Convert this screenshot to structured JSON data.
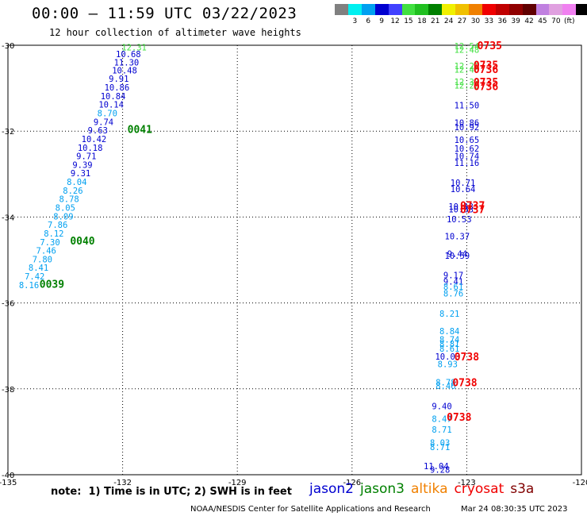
{
  "header": {
    "title": "00:00 – 11:59 UTC 03/22/2023",
    "subtitle": "12 hour collection of altimeter wave heights"
  },
  "color_scale": {
    "colors": [
      "#808080",
      "#00f0f0",
      "#00a0f0",
      "#0000d0",
      "#4040ff",
      "#40e040",
      "#20c020",
      "#008000",
      "#f0f000",
      "#f0c000",
      "#f08000",
      "#f00000",
      "#c00000",
      "#900000",
      "#600000",
      "#c080e0",
      "#e0a0e0",
      "#f080f0",
      "#000000"
    ],
    "labels": [
      "3",
      "6",
      "9",
      "12",
      "15",
      "18",
      "21",
      "24",
      "27",
      "30",
      "33",
      "36",
      "39",
      "42",
      "45",
      "70",
      "(ft)"
    ]
  },
  "chart_data": {
    "type": "scatter",
    "title": "00:00 – 11:59 UTC 03/22/2023",
    "subtitle": "12 hour collection of altimeter wave heights",
    "xlabel": "",
    "ylabel": "",
    "xlim": [
      -135,
      -120
    ],
    "ylim": [
      -40,
      -30
    ],
    "x_ticks": [
      "-135",
      "-132",
      "-129",
      "-126",
      "-123",
      "-120"
    ],
    "y_ticks": [
      "-30",
      "-32",
      "-34",
      "-36",
      "-38",
      "-40"
    ],
    "grid": true,
    "series": [
      {
        "name": "jason3",
        "color": "#008000",
        "points": [
          {
            "x": -131.7,
            "y": -30.05,
            "label": "12.31",
            "color": "#40e040"
          },
          {
            "x": -131.85,
            "y": -30.2,
            "label": "10.68",
            "color": "#0000d0"
          },
          {
            "x": -131.9,
            "y": -30.4,
            "label": "11.30",
            "color": "#0000d0"
          },
          {
            "x": -131.95,
            "y": -30.58,
            "label": "10.48",
            "color": "#0000d0"
          },
          {
            "x": -132.1,
            "y": -30.78,
            "label": "9.91",
            "color": "#0000d0"
          },
          {
            "x": -132.15,
            "y": -30.98,
            "label": "10.86",
            "color": "#0000d0"
          },
          {
            "x": -132.25,
            "y": -31.18,
            "label": "10.84",
            "color": "#0000d0"
          },
          {
            "x": -132.3,
            "y": -31.38,
            "label": "10.14",
            "color": "#0000d0"
          },
          {
            "x": -132.4,
            "y": -31.58,
            "label": "8.70",
            "color": "#00a0f0"
          },
          {
            "x": -132.5,
            "y": -31.78,
            "label": "9.74",
            "color": "#0000d0"
          },
          {
            "x": -132.65,
            "y": -31.98,
            "label": "9.63",
            "color": "#0000d0"
          },
          {
            "x": -132.75,
            "y": -32.18,
            "label": "10.42",
            "color": "#0000d0"
          },
          {
            "x": -132.85,
            "y": -32.38,
            "label": "10.18",
            "color": "#0000d0"
          },
          {
            "x": -132.95,
            "y": -32.58,
            "label": "9.71",
            "color": "#0000d0"
          },
          {
            "x": -133.05,
            "y": -32.78,
            "label": "9.39",
            "color": "#0000d0"
          },
          {
            "x": -133.1,
            "y": -32.98,
            "label": "9.31",
            "color": "#0000d0"
          },
          {
            "x": -133.2,
            "y": -33.18,
            "label": "8.04",
            "color": "#00a0f0"
          },
          {
            "x": -133.3,
            "y": -33.38,
            "label": "8.26",
            "color": "#00a0f0"
          },
          {
            "x": -133.4,
            "y": -33.58,
            "label": "8.78",
            "color": "#00a0f0"
          },
          {
            "x": -133.5,
            "y": -33.78,
            "label": "8.05",
            "color": "#00a0f0"
          },
          {
            "x": -133.55,
            "y": -33.98,
            "label": "8.09",
            "color": "#00a0f0"
          },
          {
            "x": -133.7,
            "y": -34.18,
            "label": "7.86",
            "color": "#00a0f0"
          },
          {
            "x": -133.8,
            "y": -34.38,
            "label": "8.12",
            "color": "#00a0f0"
          },
          {
            "x": -133.9,
            "y": -34.58,
            "label": "7.30",
            "color": "#00a0f0"
          },
          {
            "x": -134.0,
            "y": -34.78,
            "label": "7.46",
            "color": "#00a0f0"
          },
          {
            "x": -134.1,
            "y": -34.98,
            "label": "7.80",
            "color": "#00a0f0"
          },
          {
            "x": -134.2,
            "y": -35.18,
            "label": "8.41",
            "color": "#00a0f0"
          },
          {
            "x": -134.3,
            "y": -35.38,
            "label": "7.42",
            "color": "#00a0f0"
          },
          {
            "x": -134.45,
            "y": -35.58,
            "label": "8.16",
            "color": "#00a0f0"
          }
        ],
        "time_labels": [
          {
            "x": -131.55,
            "y": -31.95,
            "text": "0041"
          },
          {
            "x": -133.05,
            "y": -34.55,
            "text": "0040"
          },
          {
            "x": -133.85,
            "y": -35.55,
            "text": "0039"
          }
        ]
      },
      {
        "name": "jason2",
        "color": "#0000d0",
        "points": [
          {
            "x": -123.0,
            "y": -30.02,
            "label": "12.54",
            "color": "#40e040"
          },
          {
            "x": -123.0,
            "y": -30.1,
            "label": "12.48",
            "color": "#40e040"
          },
          {
            "x": -123.0,
            "y": -30.48,
            "label": "12.29",
            "color": "#40e040"
          },
          {
            "x": -123.0,
            "y": -30.56,
            "label": "12.46",
            "color": "#40e040"
          },
          {
            "x": -123.0,
            "y": -30.85,
            "label": "12.37",
            "color": "#40e040"
          },
          {
            "x": -123.0,
            "y": -30.93,
            "label": "12.20",
            "color": "#40e040"
          },
          {
            "x": -123.0,
            "y": -31.4,
            "label": "11.50",
            "color": "#0000d0"
          },
          {
            "x": -123.0,
            "y": -31.8,
            "label": "10.86",
            "color": "#0000d0"
          },
          {
            "x": -123.0,
            "y": -31.9,
            "label": "10.92",
            "color": "#0000d0"
          },
          {
            "x": -123.0,
            "y": -32.2,
            "label": "10.65",
            "color": "#0000d0"
          },
          {
            "x": -123.0,
            "y": -32.4,
            "label": "10.62",
            "color": "#0000d0"
          },
          {
            "x": -123.0,
            "y": -32.58,
            "label": "10.74",
            "color": "#0000d0"
          },
          {
            "x": -123.0,
            "y": -32.74,
            "label": "11.16",
            "color": "#0000d0"
          },
          {
            "x": -123.1,
            "y": -33.2,
            "label": "10.71",
            "color": "#0000d0"
          },
          {
            "x": -123.1,
            "y": -33.35,
            "label": "10.64",
            "color": "#0000d0"
          },
          {
            "x": -123.15,
            "y": -33.75,
            "label": "10.13",
            "color": "#0000d0"
          },
          {
            "x": -123.15,
            "y": -33.82,
            "label": "10.83",
            "color": "#0000d0"
          },
          {
            "x": -123.2,
            "y": -34.05,
            "label": "10.53",
            "color": "#0000d0"
          },
          {
            "x": -123.25,
            "y": -34.45,
            "label": "10.37",
            "color": "#0000d0"
          },
          {
            "x": -123.25,
            "y": -34.85,
            "label": "9.44",
            "color": "#0000d0"
          },
          {
            "x": -123.25,
            "y": -34.9,
            "label": "10.59",
            "color": "#0000d0"
          },
          {
            "x": -123.35,
            "y": -35.35,
            "label": "9.17",
            "color": "#0000d0"
          },
          {
            "x": -123.35,
            "y": -35.5,
            "label": "9.41",
            "color": "#0000d0"
          },
          {
            "x": -123.35,
            "y": -35.62,
            "label": "8.61",
            "color": "#00a0f0"
          },
          {
            "x": -123.35,
            "y": -35.78,
            "label": "8.76",
            "color": "#00a0f0"
          },
          {
            "x": -123.45,
            "y": -36.25,
            "label": "8.21",
            "color": "#00a0f0"
          },
          {
            "x": -123.45,
            "y": -36.65,
            "label": "8.84",
            "color": "#00a0f0"
          },
          {
            "x": -123.45,
            "y": -36.85,
            "label": "8.74",
            "color": "#00a0f0"
          },
          {
            "x": -123.45,
            "y": -36.95,
            "label": "8.81",
            "color": "#00a0f0"
          },
          {
            "x": -123.45,
            "y": -37.06,
            "label": "8.61",
            "color": "#00a0f0"
          },
          {
            "x": -123.5,
            "y": -37.25,
            "label": "10.03",
            "color": "#0000d0"
          },
          {
            "x": -123.5,
            "y": -37.42,
            "label": "8.93",
            "color": "#00a0f0"
          },
          {
            "x": -123.55,
            "y": -37.85,
            "label": "8.78",
            "color": "#00a0f0"
          },
          {
            "x": -123.55,
            "y": -37.93,
            "label": "8.46",
            "color": "#00a0f0"
          },
          {
            "x": -123.65,
            "y": -38.4,
            "label": "9.40",
            "color": "#0000d0"
          },
          {
            "x": -123.65,
            "y": -38.7,
            "label": "8.47",
            "color": "#00a0f0"
          },
          {
            "x": -123.65,
            "y": -38.95,
            "label": "8.71",
            "color": "#00a0f0"
          },
          {
            "x": -123.7,
            "y": -39.25,
            "label": "8.03",
            "color": "#00a0f0"
          },
          {
            "x": -123.7,
            "y": -39.35,
            "label": "8.71",
            "color": "#00a0f0"
          },
          {
            "x": -123.8,
            "y": -39.8,
            "label": "11.04",
            "color": "#0000d0"
          },
          {
            "x": -123.7,
            "y": -39.88,
            "label": "9.28",
            "color": "#0000d0"
          }
        ],
        "time_labels": []
      },
      {
        "name": "cryosat",
        "color": "#f00000",
        "points": [],
        "time_labels": [
          {
            "x": -122.4,
            "y": -30.0,
            "text": "0735"
          },
          {
            "x": -122.5,
            "y": -30.45,
            "text": "0735"
          },
          {
            "x": -122.5,
            "y": -30.55,
            "text": "0736"
          },
          {
            "x": -122.5,
            "y": -30.85,
            "text": "0735"
          },
          {
            "x": -122.5,
            "y": -30.95,
            "text": "0736"
          },
          {
            "x": -122.85,
            "y": -33.72,
            "text": "0737"
          },
          {
            "x": -122.85,
            "y": -33.82,
            "text": "0737"
          },
          {
            "x": -123.0,
            "y": -37.25,
            "text": "0738"
          },
          {
            "x": -123.05,
            "y": -37.85,
            "text": "0738"
          },
          {
            "x": -123.2,
            "y": -38.65,
            "text": "0738"
          }
        ]
      }
    ]
  },
  "footer": {
    "note": "note:  1) Time is in UTC; 2) SWH is in feet",
    "satellites": [
      {
        "name": "jason2",
        "color": "#0000d0"
      },
      {
        "name": "jason3",
        "color": "#008000"
      },
      {
        "name": "altika",
        "color": "#f08000"
      },
      {
        "name": "cryosat",
        "color": "#f00000"
      },
      {
        "name": "s3a",
        "color": "#800000"
      }
    ],
    "credit": "NOAA/NESDIS Center for Satellite Applications and Research",
    "timestamp": "Mar 24 08:30:35 UTC 2023"
  }
}
